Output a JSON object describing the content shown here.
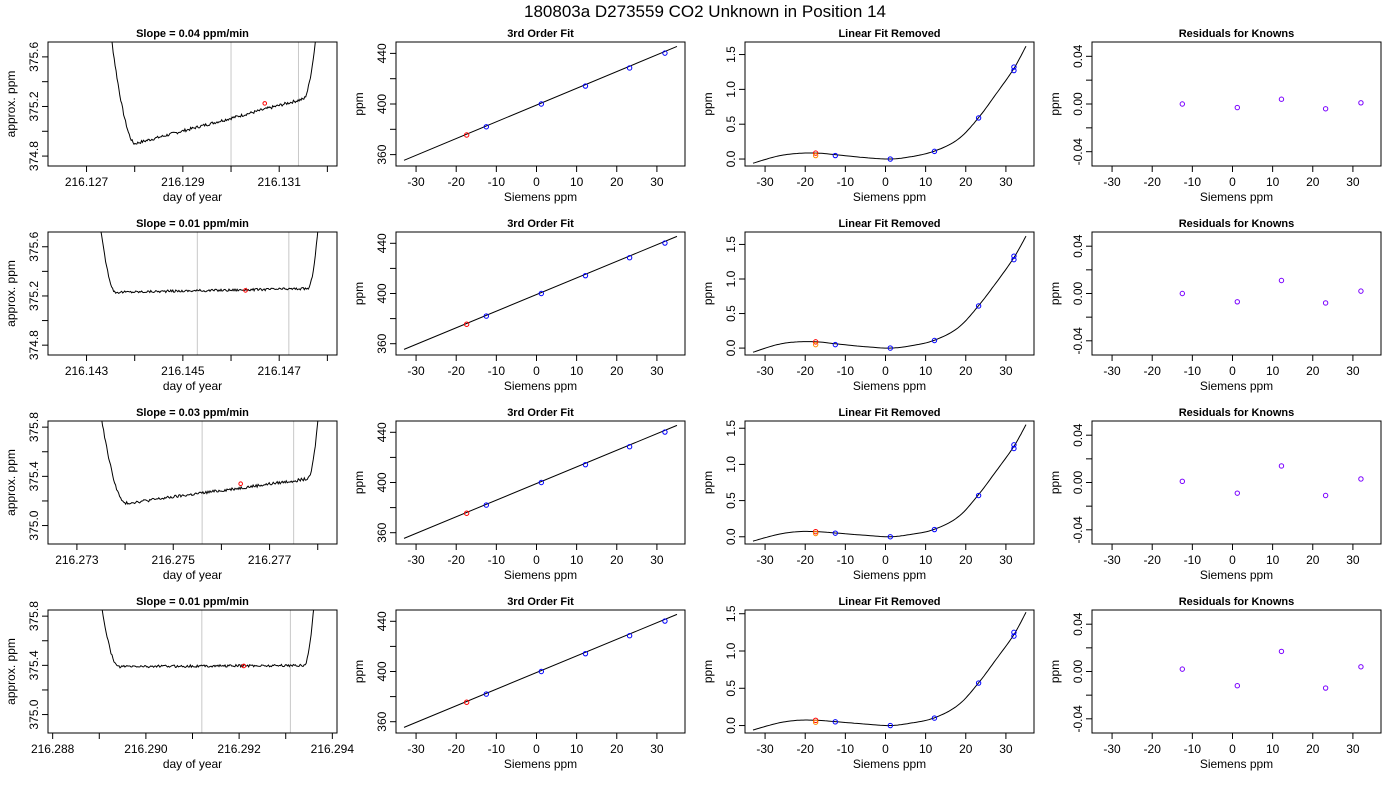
{
  "suptitle": "180803a      D273559    CO2 Unknown in Position  14",
  "colors": {
    "curve": "#000000",
    "known": "#0000ff",
    "unknown": "#ff0000",
    "unknown_alt": "#ff8c00",
    "residual": "#7a00ff",
    "window": "#c8c8c8"
  },
  "chart_data": [
    {
      "id": "r0-time",
      "type": "line",
      "title": "Slope =  0.04  ppm/min",
      "xlabel": "day of year",
      "ylabel": "approx. ppm",
      "xlim": [
        216.1262,
        216.1322
      ],
      "ylim": [
        374.72,
        375.72
      ],
      "xticks": [
        216.127,
        216.128,
        216.129,
        216.13,
        216.131,
        216.132
      ],
      "xtick_labels": [
        "216.127",
        "",
        "216.129",
        "",
        "216.131",
        ""
      ],
      "yticks": [
        374.8,
        375.0,
        375.2,
        375.4,
        375.6
      ],
      "ytick_labels": [
        "374.8",
        "",
        "375.2",
        "",
        "375.6"
      ],
      "vlines": [
        216.13,
        216.1314
      ],
      "trace": {
        "x0": 216.1273,
        "x1": 216.132,
        "drop_end": 216.128,
        "rise_start": 216.1315,
        "base_start": 374.9,
        "base_end": 375.26,
        "noise": 0.012
      },
      "marker": {
        "x": 216.1307,
        "y": 375.225
      }
    },
    {
      "id": "r0-fit",
      "type": "scatter",
      "title": "3rd Order Fit",
      "xlabel": "Siemens ppm",
      "ylabel": "ppm",
      "xlim": [
        -35,
        37
      ],
      "ylim": [
        351,
        449
      ],
      "xticks": [
        -30,
        -20,
        -10,
        0,
        10,
        20,
        30
      ],
      "xtick_labels": [
        "-30",
        "-20",
        "-10",
        "0",
        "10",
        "20",
        "30"
      ],
      "yticks": [
        360,
        380,
        400,
        420,
        440
      ],
      "ytick_labels": [
        "360",
        "",
        "400",
        "",
        "440"
      ],
      "line": {
        "x": [
          -33,
          35
        ],
        "y": [
          355.5,
          445.5
        ]
      },
      "known": {
        "x": [
          -12.5,
          1.2,
          12.2,
          23.2,
          32.0
        ],
        "y": [
          382.0,
          400.0,
          414.2,
          428.5,
          440.2
        ]
      },
      "unknown": {
        "x": [
          -17.4
        ],
        "y": [
          375.5
        ]
      }
    },
    {
      "id": "r0-lin",
      "type": "scatter",
      "title": "Linear Fit Removed",
      "xlabel": "Siemens ppm",
      "ylabel": "ppm",
      "xlim": [
        -35,
        37
      ],
      "ylim": [
        -0.1,
        1.68
      ],
      "xticks": [
        -30,
        -20,
        -10,
        0,
        10,
        20,
        30
      ],
      "xtick_labels": [
        "-30",
        "-20",
        "-10",
        "0",
        "10",
        "20",
        "30"
      ],
      "yticks": [
        0.0,
        0.5,
        1.0,
        1.5
      ],
      "ytick_labels": [
        "0.0",
        "0.5",
        "1.0",
        "1.5"
      ],
      "curve": {
        "x": [
          -33,
          -27,
          -22,
          -17,
          -12,
          -5,
          1,
          6,
          12,
          18,
          23,
          28,
          32,
          35
        ],
        "y": [
          -0.06,
          0.04,
          0.08,
          0.085,
          0.06,
          0.02,
          0.0,
          0.03,
          0.11,
          0.28,
          0.58,
          0.97,
          1.3,
          1.62
        ]
      },
      "known": {
        "x": [
          -12.5,
          1.2,
          12.2,
          23.2,
          32.0,
          32.0
        ],
        "y": [
          0.05,
          0.0,
          0.11,
          0.59,
          1.27,
          1.32
        ]
      },
      "unknown": {
        "x": [
          -17.4,
          -17.4
        ],
        "y": [
          0.085,
          0.05
        ]
      }
    },
    {
      "id": "r0-res",
      "type": "scatter",
      "title": "Residuals for Knowns",
      "xlabel": "Siemens ppm",
      "ylabel": "ppm",
      "xlim": [
        -35,
        37
      ],
      "ylim": [
        -0.052,
        0.052
      ],
      "xticks": [
        -30,
        -20,
        -10,
        0,
        10,
        20,
        30
      ],
      "xtick_labels": [
        "-30",
        "-20",
        "-10",
        "0",
        "10",
        "20",
        "30"
      ],
      "yticks": [
        -0.04,
        -0.02,
        0.0,
        0.02,
        0.04
      ],
      "ytick_labels": [
        "-0.04",
        "",
        "0.00",
        "",
        "0.04"
      ],
      "points": {
        "x": [
          -12.5,
          1.2,
          12.2,
          23.2,
          32.0
        ],
        "y": [
          0.0,
          -0.003,
          0.004,
          -0.004,
          0.001
        ]
      }
    },
    {
      "id": "r1-time",
      "type": "line",
      "title": "Slope =  0.01  ppm/min",
      "xlabel": "day of year",
      "ylabel": "approx. ppm",
      "xlim": [
        216.1422,
        216.1482
      ],
      "ylim": [
        374.72,
        375.72
      ],
      "xticks": [
        216.143,
        216.144,
        216.145,
        216.146,
        216.147,
        216.148
      ],
      "xtick_labels": [
        "216.143",
        "",
        "216.145",
        "",
        "216.147",
        ""
      ],
      "yticks": [
        374.8,
        375.0,
        375.2,
        375.4,
        375.6
      ],
      "ytick_labels": [
        "374.8",
        "",
        "375.2",
        "",
        "375.6"
      ],
      "vlines": [
        216.1453,
        216.1472
      ],
      "trace": {
        "x0": 216.143,
        "x1": 216.148,
        "drop_end": 216.1436,
        "rise_start": 216.1476,
        "base_start": 375.23,
        "base_end": 375.26,
        "noise": 0.01
      },
      "marker": {
        "x": 216.1463,
        "y": 375.245
      }
    },
    {
      "id": "r1-fit",
      "type": "scatter",
      "title": "3rd Order Fit",
      "xlabel": "Siemens ppm",
      "ylabel": "ppm",
      "xlim": [
        -35,
        37
      ],
      "ylim": [
        351,
        449
      ],
      "xticks": [
        -30,
        -20,
        -10,
        0,
        10,
        20,
        30
      ],
      "xtick_labels": [
        "-30",
        "-20",
        "-10",
        "0",
        "10",
        "20",
        "30"
      ],
      "yticks": [
        360,
        380,
        400,
        420,
        440
      ],
      "ytick_labels": [
        "360",
        "",
        "400",
        "",
        "440"
      ],
      "line": {
        "x": [
          -33,
          35
        ],
        "y": [
          355.5,
          445.5
        ]
      },
      "known": {
        "x": [
          -12.5,
          1.2,
          12.2,
          23.2,
          32.0
        ],
        "y": [
          382.0,
          400.0,
          414.2,
          428.5,
          440.2
        ]
      },
      "unknown": {
        "x": [
          -17.4
        ],
        "y": [
          375.5
        ]
      }
    },
    {
      "id": "r1-lin",
      "type": "scatter",
      "title": "Linear Fit Removed",
      "xlabel": "Siemens ppm",
      "ylabel": "ppm",
      "xlim": [
        -35,
        37
      ],
      "ylim": [
        -0.1,
        1.68
      ],
      "xticks": [
        -30,
        -20,
        -10,
        0,
        10,
        20,
        30
      ],
      "xtick_labels": [
        "-30",
        "-20",
        "-10",
        "0",
        "10",
        "20",
        "30"
      ],
      "yticks": [
        0.0,
        0.5,
        1.0,
        1.5
      ],
      "ytick_labels": [
        "0.0",
        "0.5",
        "1.0",
        "1.5"
      ],
      "curve": {
        "x": [
          -33,
          -27,
          -22,
          -17,
          -12,
          -5,
          1,
          6,
          12,
          18,
          23,
          28,
          32,
          35
        ],
        "y": [
          -0.06,
          0.05,
          0.09,
          0.09,
          0.06,
          0.02,
          0.0,
          0.03,
          0.11,
          0.29,
          0.6,
          0.98,
          1.31,
          1.62
        ]
      },
      "known": {
        "x": [
          -12.5,
          1.2,
          12.2,
          23.2,
          32.0,
          32.0
        ],
        "y": [
          0.05,
          0.0,
          0.11,
          0.61,
          1.28,
          1.33
        ]
      },
      "unknown": {
        "x": [
          -17.4,
          -17.4
        ],
        "y": [
          0.09,
          0.05
        ]
      }
    },
    {
      "id": "r1-res",
      "type": "scatter",
      "title": "Residuals for Knowns",
      "xlabel": "Siemens ppm",
      "ylabel": "ppm",
      "xlim": [
        -35,
        37
      ],
      "ylim": [
        -0.052,
        0.052
      ],
      "xticks": [
        -30,
        -20,
        -10,
        0,
        10,
        20,
        30
      ],
      "xtick_labels": [
        "-30",
        "-20",
        "-10",
        "0",
        "10",
        "20",
        "30"
      ],
      "yticks": [
        -0.04,
        -0.02,
        0.0,
        0.02,
        0.04
      ],
      "ytick_labels": [
        "-0.04",
        "",
        "0.00",
        "",
        "0.04"
      ],
      "points": {
        "x": [
          -12.5,
          1.2,
          12.2,
          23.2,
          32.0
        ],
        "y": [
          0.0,
          -0.007,
          0.011,
          -0.008,
          0.002
        ]
      }
    },
    {
      "id": "r2-time",
      "type": "line",
      "title": "Slope =  0.03  ppm/min",
      "xlabel": "day of year",
      "ylabel": "approx. ppm",
      "xlim": [
        216.2724,
        216.2784
      ],
      "ylim": [
        374.85,
        375.85
      ],
      "xticks": [
        216.273,
        216.274,
        216.275,
        216.276,
        216.277,
        216.278
      ],
      "xtick_labels": [
        "216.273",
        "",
        "216.275",
        "",
        "216.277",
        ""
      ],
      "yticks": [
        375.0,
        375.2,
        375.4,
        375.6,
        375.8
      ],
      "ytick_labels": [
        "375.0",
        "",
        "375.4",
        "",
        "375.8"
      ],
      "vlines": [
        216.2756,
        216.2775
      ],
      "trace": {
        "x0": 216.2732,
        "x1": 216.2782,
        "drop_end": 216.274,
        "rise_start": 216.2778,
        "base_start": 375.18,
        "base_end": 375.38,
        "noise": 0.012
      },
      "marker": {
        "x": 216.2764,
        "y": 375.34
      }
    },
    {
      "id": "r2-fit",
      "type": "scatter",
      "title": "3rd Order Fit",
      "xlabel": "Siemens ppm",
      "ylabel": "ppm",
      "xlim": [
        -35,
        37
      ],
      "ylim": [
        351,
        449
      ],
      "xticks": [
        -30,
        -20,
        -10,
        0,
        10,
        20,
        30
      ],
      "xtick_labels": [
        "-30",
        "-20",
        "-10",
        "0",
        "10",
        "20",
        "30"
      ],
      "yticks": [
        360,
        380,
        400,
        420,
        440
      ],
      "ytick_labels": [
        "360",
        "",
        "400",
        "",
        "440"
      ],
      "line": {
        "x": [
          -33,
          35
        ],
        "y": [
          355.5,
          445.5
        ]
      },
      "known": {
        "x": [
          -12.5,
          1.2,
          12.2,
          23.2,
          32.0
        ],
        "y": [
          382.0,
          400.0,
          414.2,
          428.5,
          440.2
        ]
      },
      "unknown": {
        "x": [
          -17.4
        ],
        "y": [
          375.5
        ]
      }
    },
    {
      "id": "r2-lin",
      "type": "scatter",
      "title": "Linear Fit Removed",
      "xlabel": "Siemens ppm",
      "ylabel": "ppm",
      "xlim": [
        -35,
        37
      ],
      "ylim": [
        -0.1,
        1.6
      ],
      "xticks": [
        -30,
        -20,
        -10,
        0,
        10,
        20,
        30
      ],
      "xtick_labels": [
        "-30",
        "-20",
        "-10",
        "0",
        "10",
        "20",
        "30"
      ],
      "yticks": [
        0.0,
        0.5,
        1.0,
        1.5
      ],
      "ytick_labels": [
        "0.0",
        "0.5",
        "1.0",
        "1.5"
      ],
      "curve": {
        "x": [
          -33,
          -27,
          -22,
          -17,
          -12,
          -5,
          1,
          6,
          12,
          18,
          23,
          28,
          32,
          35
        ],
        "y": [
          -0.06,
          0.03,
          0.07,
          0.07,
          0.05,
          0.02,
          0.0,
          0.03,
          0.1,
          0.27,
          0.57,
          0.94,
          1.25,
          1.55
        ]
      },
      "known": {
        "x": [
          -12.5,
          1.2,
          12.2,
          23.2,
          32.0,
          32.0
        ],
        "y": [
          0.05,
          0.0,
          0.1,
          0.57,
          1.22,
          1.27
        ]
      },
      "unknown": {
        "x": [
          -17.4,
          -17.4
        ],
        "y": [
          0.07,
          0.045
        ]
      }
    },
    {
      "id": "r2-res",
      "type": "scatter",
      "title": "Residuals for Knowns",
      "xlabel": "Siemens ppm",
      "ylabel": "ppm",
      "xlim": [
        -35,
        37
      ],
      "ylim": [
        -0.052,
        0.052
      ],
      "xticks": [
        -30,
        -20,
        -10,
        0,
        10,
        20,
        30
      ],
      "xtick_labels": [
        "-30",
        "-20",
        "-10",
        "0",
        "10",
        "20",
        "30"
      ],
      "yticks": [
        -0.04,
        -0.02,
        0.0,
        0.02,
        0.04
      ],
      "ytick_labels": [
        "-0.04",
        "",
        "0.00",
        "",
        "0.04"
      ],
      "points": {
        "x": [
          -12.5,
          1.2,
          12.2,
          23.2,
          32.0
        ],
        "y": [
          0.001,
          -0.009,
          0.014,
          -0.011,
          0.003
        ]
      }
    },
    {
      "id": "r3-time",
      "type": "line",
      "title": "Slope =  0.01  ppm/min",
      "xlabel": "day of year",
      "ylabel": "approx. ppm",
      "xlim": [
        216.2879,
        216.2941
      ],
      "ylim": [
        374.85,
        375.85
      ],
      "xticks": [
        216.288,
        216.289,
        216.29,
        216.291,
        216.292,
        216.293,
        216.294
      ],
      "xtick_labels": [
        "216.288",
        "",
        "216.290",
        "",
        "216.292",
        "",
        "216.294"
      ],
      "yticks": [
        375.0,
        375.2,
        375.4,
        375.6,
        375.8
      ],
      "ytick_labels": [
        "375.0",
        "",
        "375.4",
        "",
        "375.8"
      ],
      "vlines": [
        216.2912,
        216.2931
      ],
      "trace": {
        "x0": 216.2887,
        "x1": 216.2938,
        "drop_end": 216.2894,
        "rise_start": 216.2934,
        "base_start": 375.39,
        "base_end": 375.4,
        "noise": 0.01
      },
      "marker": {
        "x": 216.2921,
        "y": 375.395
      }
    },
    {
      "id": "r3-fit",
      "type": "scatter",
      "title": "3rd Order Fit",
      "xlabel": "Siemens ppm",
      "ylabel": "ppm",
      "xlim": [
        -35,
        37
      ],
      "ylim": [
        351,
        449
      ],
      "xticks": [
        -30,
        -20,
        -10,
        0,
        10,
        20,
        30
      ],
      "xtick_labels": [
        "-30",
        "-20",
        "-10",
        "0",
        "10",
        "20",
        "30"
      ],
      "yticks": [
        360,
        380,
        400,
        420,
        440
      ],
      "ytick_labels": [
        "360",
        "",
        "400",
        "",
        "440"
      ],
      "line": {
        "x": [
          -33,
          35
        ],
        "y": [
          355.5,
          445.5
        ]
      },
      "known": {
        "x": [
          -12.5,
          1.2,
          12.2,
          23.2,
          32.0
        ],
        "y": [
          382.0,
          400.0,
          414.2,
          428.5,
          440.2
        ]
      },
      "unknown": {
        "x": [
          -17.4
        ],
        "y": [
          375.5
        ]
      }
    },
    {
      "id": "r3-lin",
      "type": "scatter",
      "title": "Linear Fit Removed",
      "xlabel": "Siemens ppm",
      "ylabel": "ppm",
      "xlim": [
        -35,
        37
      ],
      "ylim": [
        -0.1,
        1.55
      ],
      "xticks": [
        -30,
        -20,
        -10,
        0,
        10,
        20,
        30
      ],
      "xtick_labels": [
        "-30",
        "-20",
        "-10",
        "0",
        "10",
        "20",
        "30"
      ],
      "yticks": [
        0.0,
        0.5,
        1.0,
        1.5
      ],
      "ytick_labels": [
        "0.0",
        "0.5",
        "1.0",
        "1.5"
      ],
      "curve": {
        "x": [
          -33,
          -27,
          -22,
          -17,
          -12,
          -5,
          1,
          6,
          12,
          18,
          23,
          28,
          32,
          35
        ],
        "y": [
          -0.06,
          0.03,
          0.07,
          0.07,
          0.05,
          0.02,
          0.0,
          0.03,
          0.1,
          0.27,
          0.56,
          0.92,
          1.22,
          1.52
        ]
      },
      "known": {
        "x": [
          -12.5,
          1.2,
          12.2,
          23.2,
          32.0,
          32.0
        ],
        "y": [
          0.05,
          0.0,
          0.1,
          0.57,
          1.2,
          1.25
        ]
      },
      "unknown": {
        "x": [
          -17.4,
          -17.4
        ],
        "y": [
          0.07,
          0.045
        ]
      }
    },
    {
      "id": "r3-res",
      "type": "scatter",
      "title": "Residuals for Knowns",
      "xlabel": "Siemens ppm",
      "ylabel": "ppm",
      "xlim": [
        -35,
        37
      ],
      "ylim": [
        -0.052,
        0.052
      ],
      "xticks": [
        -30,
        -20,
        -10,
        0,
        10,
        20,
        30
      ],
      "xtick_labels": [
        "-30",
        "-20",
        "-10",
        "0",
        "10",
        "20",
        "30"
      ],
      "yticks": [
        -0.04,
        -0.02,
        0.0,
        0.02,
        0.04
      ],
      "ytick_labels": [
        "-0.04",
        "",
        "0.00",
        "",
        "0.04"
      ],
      "points": {
        "x": [
          -12.5,
          1.2,
          12.2,
          23.2,
          32.0
        ],
        "y": [
          0.002,
          -0.012,
          0.017,
          -0.014,
          0.004
        ]
      }
    }
  ]
}
